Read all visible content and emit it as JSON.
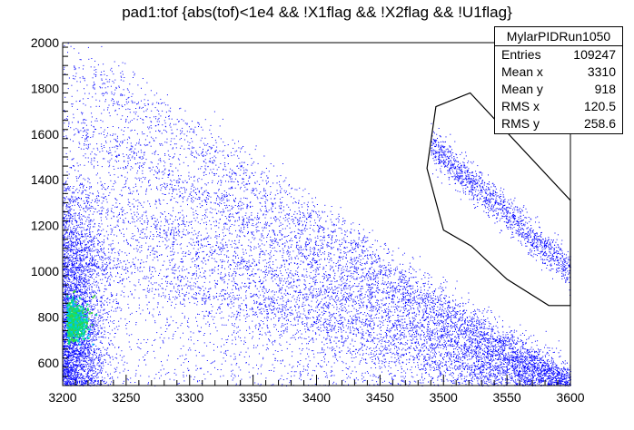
{
  "title": "pad1:tof {abs(tof)<1e4 && !X1flag && !X2flag && !U1flag}",
  "stats": {
    "name": "MylarPIDRun1050",
    "rows": [
      {
        "label": "Entries",
        "value": "109247"
      },
      {
        "label": "Mean x",
        "value": "3310"
      },
      {
        "label": "Mean y",
        "value": "918"
      },
      {
        "label": "RMS x",
        "value": "120.5"
      },
      {
        "label": "RMS y",
        "value": "258.6"
      }
    ]
  },
  "chart_data": {
    "type": "scatter",
    "title": "pad1:tof {abs(tof)<1e4 && !X1flag && !X2flag && !U1flag}",
    "xlabel": "",
    "ylabel": "",
    "xlim": [
      3200,
      3600
    ],
    "ylim": [
      500,
      2000
    ],
    "x_ticks": [
      "3200",
      "3250",
      "3300",
      "3350",
      "3400",
      "3450",
      "3500",
      "3550",
      "3600"
    ],
    "y_ticks": [
      "600",
      "800",
      "1000",
      "1200",
      "1400",
      "1600",
      "1800",
      "2000"
    ],
    "point_color": "#0000ff",
    "hotspot_colors": [
      "#00bfff",
      "#00e08a",
      "#3cd23c"
    ],
    "grid": false,
    "entries": 109247,
    "mean_x": 3310,
    "mean_y": 918,
    "rms_x": 120.5,
    "rms_y": 258.6,
    "selection_cut": {
      "shape": "polygon",
      "color": "#000000",
      "vertices": [
        [
          3521,
          1780
        ],
        [
          3600,
          1310
        ],
        [
          3600,
          850
        ],
        [
          3583,
          850
        ],
        [
          3550,
          965
        ],
        [
          3522,
          1110
        ],
        [
          3500,
          1180
        ],
        [
          3487,
          1450
        ],
        [
          3494,
          1720
        ]
      ]
    },
    "bands": [
      {
        "x": [
          3200,
          3600
        ],
        "y": [
          1950,
          500
        ]
      },
      {
        "x": [
          3200,
          3600
        ],
        "y": [
          1650,
          500
        ]
      },
      {
        "x": [
          3200,
          3600
        ],
        "y": [
          1350,
          500
        ]
      },
      {
        "x": [
          3200,
          3580
        ],
        "y": [
          1100,
          500
        ]
      },
      {
        "x": [
          3490,
          3600
        ],
        "y": [
          1550,
          1000
        ]
      }
    ]
  }
}
